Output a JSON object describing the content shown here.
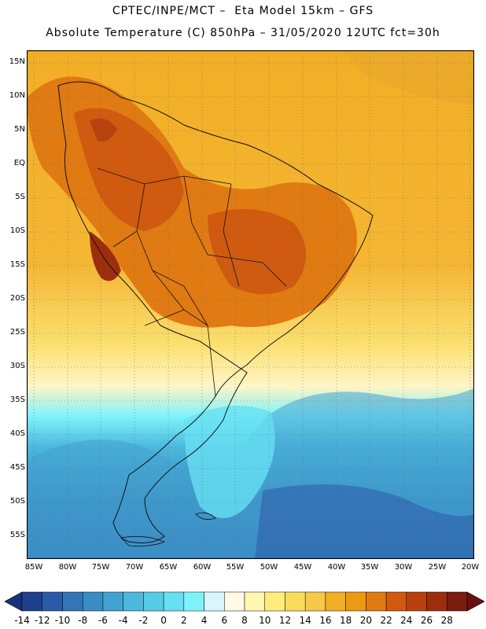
{
  "header": {
    "line1": "CPTEC/INPE/MCT –  Eta Model 15km – GFS",
    "line2": "Absolute Temperature (C) 850hPa – 31/05/2020 12UTC fct=30h"
  },
  "map": {
    "lat_labels": [
      "15N",
      "10N",
      "5N",
      "EQ",
      "5S",
      "10S",
      "15S",
      "20S",
      "25S",
      "30S",
      "35S",
      "40S",
      "45S",
      "50S",
      "55S"
    ],
    "lon_labels": [
      "85W",
      "80W",
      "75W",
      "70W",
      "65W",
      "60W",
      "55W",
      "50W",
      "45W",
      "40W",
      "35W",
      "30W",
      "25W",
      "20W"
    ]
  },
  "colorbar": {
    "labels": [
      "-14",
      "-12",
      "-10",
      "-8",
      "-6",
      "-4",
      "-2",
      "0",
      "2",
      "4",
      "6",
      "8",
      "10",
      "12",
      "14",
      "16",
      "18",
      "20",
      "22",
      "24",
      "26",
      "28"
    ],
    "colors": [
      "#1f3f8f",
      "#2b5aa8",
      "#3474b8",
      "#3a8dc4",
      "#43a3d0",
      "#4cb8dd",
      "#56cce8",
      "#66e0f2",
      "#7ef3fb",
      "#d8f6fb",
      "#fff9e6",
      "#fff6b0",
      "#ffec7a",
      "#fbdc5a",
      "#f7c84a",
      "#f2ae25",
      "#ec9a12",
      "#e07a12",
      "#cf5a10",
      "#b8420e",
      "#9c2e0c",
      "#7a1d10"
    ],
    "low_end_color": "#16307a",
    "high_end_color": "#6a0f0f"
  }
}
